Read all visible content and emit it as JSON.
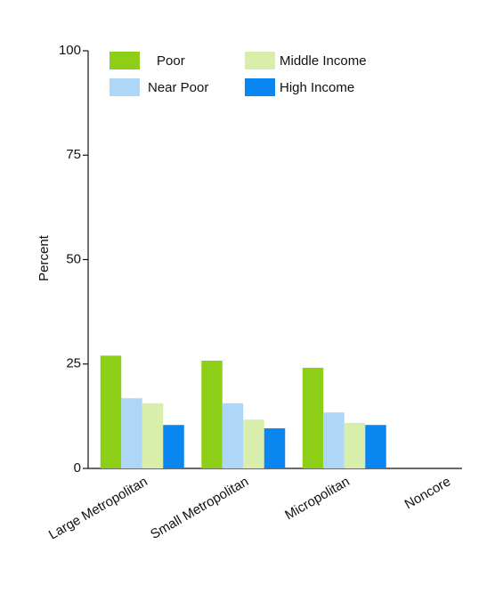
{
  "chart_data": {
    "type": "bar",
    "y_label": "Percent",
    "categories": [
      "Large Metropolitan",
      "Small Metropolitan",
      "Micropolitan",
      "Noncore"
    ],
    "series": [
      {
        "name": "Poor",
        "color": "#8ccf16",
        "values": [
          27,
          25.8,
          24.1,
          null
        ]
      },
      {
        "name": "Near Poor",
        "color": "#aed6f7",
        "values": [
          16.8,
          15.6,
          13.4,
          null
        ]
      },
      {
        "name": "Middle Income",
        "color": "#d9eeaa",
        "values": [
          15.6,
          11.7,
          10.9,
          null
        ]
      },
      {
        "name": "High Income",
        "color": "#0a86f0",
        "values": [
          10.4,
          9.6,
          10.4,
          null
        ]
      }
    ],
    "ylim": [
      0,
      100
    ],
    "yticks": [
      0,
      25,
      50,
      75,
      100
    ]
  }
}
